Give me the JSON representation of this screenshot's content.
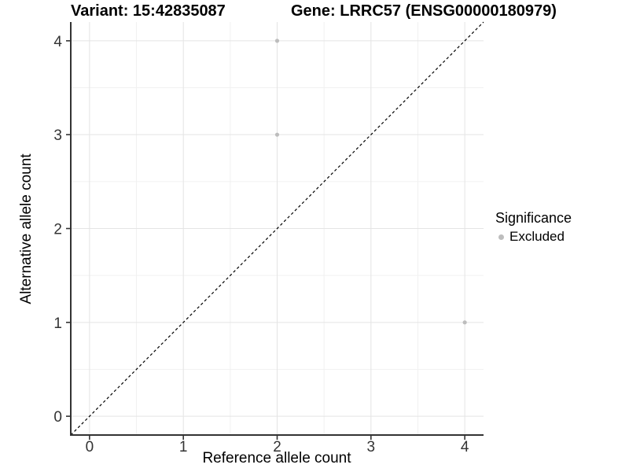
{
  "chart_data": {
    "type": "scatter",
    "title_left": "Variant: 15:42835087",
    "title_right": "Gene: LRRC57 (ENSG00000180979)",
    "xlabel": "Reference allele count",
    "ylabel": "Alternative allele count",
    "xlim": [
      -0.2,
      4.2
    ],
    "ylim": [
      -0.2,
      4.2
    ],
    "xticks": [
      0,
      1,
      2,
      3,
      4
    ],
    "yticks": [
      0,
      1,
      2,
      3,
      4
    ],
    "xticks_minor": [
      0.5,
      1.5,
      2.5,
      3.5
    ],
    "yticks_minor": [
      0.5,
      1.5,
      2.5,
      3.5
    ],
    "grid": true,
    "identity_line": {
      "type": "dashed",
      "slope": 1,
      "intercept": 0,
      "color": "#000000"
    },
    "series": [
      {
        "name": "Excluded",
        "color": "#bdbdbd",
        "points": [
          {
            "x": 2,
            "y": 4
          },
          {
            "x": 2,
            "y": 3
          },
          {
            "x": 4,
            "y": 1
          }
        ]
      }
    ],
    "legend": {
      "title": "Significance",
      "position": "right",
      "items": [
        {
          "label": "Excluded",
          "color": "#bdbdbd"
        }
      ]
    },
    "style": {
      "point_color": "#bdbdbd",
      "grid_major_color": "#e4e4e4",
      "grid_minor_color": "#f1f1f1",
      "axis_line_color": "#333333",
      "tick_label_color": "#333333",
      "background": "#ffffff"
    }
  }
}
